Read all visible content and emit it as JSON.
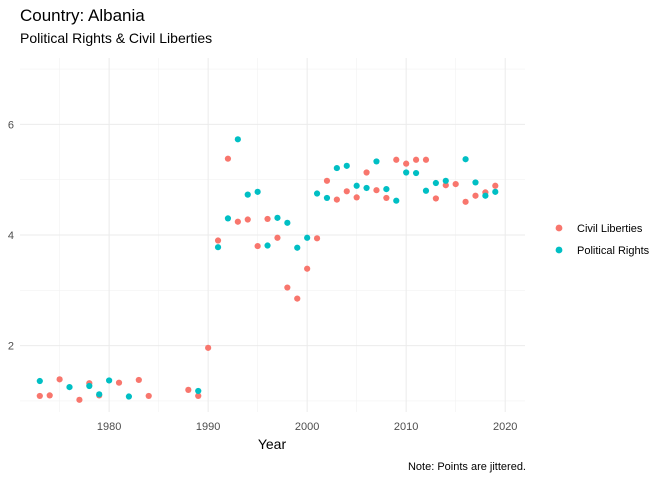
{
  "chart_data": {
    "type": "scatter",
    "title": "Country: Albania",
    "subtitle": "Political Rights & Civil Liberties",
    "xlabel": "Year",
    "ylabel": "",
    "caption": "Note: Points are jittered.",
    "xlim": [
      1971,
      2022
    ],
    "ylim": [
      0.8,
      7.2
    ],
    "xticks": [
      1980,
      1990,
      2000,
      2010,
      2020
    ],
    "yticks": [
      2,
      4,
      6
    ],
    "grid": true,
    "legend_position": "right",
    "series": [
      {
        "name": "Civil Liberties",
        "color": "#F8766D",
        "points": [
          [
            1973,
            1.09
          ],
          [
            1974,
            1.1
          ],
          [
            1975,
            1.39
          ],
          [
            1977,
            1.02
          ],
          [
            1978,
            1.32
          ],
          [
            1979,
            1.1
          ],
          [
            1981,
            1.33
          ],
          [
            1983,
            1.38
          ],
          [
            1984,
            1.09
          ],
          [
            1988,
            1.2
          ],
          [
            1989,
            1.09
          ],
          [
            1990,
            1.96
          ],
          [
            1991,
            3.9
          ],
          [
            1992,
            5.38
          ],
          [
            1993,
            4.24
          ],
          [
            1994,
            4.28
          ],
          [
            1995,
            3.8
          ],
          [
            1996,
            4.29
          ],
          [
            1997,
            3.95
          ],
          [
            1998,
            3.05
          ],
          [
            1999,
            2.85
          ],
          [
            2000,
            3.39
          ],
          [
            2001,
            3.94
          ],
          [
            2002,
            4.98
          ],
          [
            2003,
            4.64
          ],
          [
            2004,
            4.79
          ],
          [
            2005,
            4.68
          ],
          [
            2006,
            5.13
          ],
          [
            2007,
            4.81
          ],
          [
            2008,
            4.67
          ],
          [
            2009,
            5.36
          ],
          [
            2010,
            5.29
          ],
          [
            2011,
            5.36
          ],
          [
            2012,
            5.36
          ],
          [
            2013,
            4.66
          ],
          [
            2014,
            4.9
          ],
          [
            2015,
            4.92
          ],
          [
            2016,
            4.6
          ],
          [
            2017,
            4.71
          ],
          [
            2018,
            4.77
          ],
          [
            2019,
            4.89
          ]
        ]
      },
      {
        "name": "Political Rights",
        "color": "#00BFC4",
        "points": [
          [
            1973,
            1.36
          ],
          [
            1976,
            1.25
          ],
          [
            1978,
            1.27
          ],
          [
            1979,
            1.12
          ],
          [
            1980,
            1.37
          ],
          [
            1982,
            1.08
          ],
          [
            1989,
            1.18
          ],
          [
            1991,
            3.78
          ],
          [
            1992,
            4.3
          ],
          [
            1993,
            5.73
          ],
          [
            1994,
            4.73
          ],
          [
            1995,
            4.78
          ],
          [
            1996,
            3.81
          ],
          [
            1997,
            4.31
          ],
          [
            1998,
            4.22
          ],
          [
            1999,
            3.77
          ],
          [
            2000,
            3.95
          ],
          [
            2001,
            4.75
          ],
          [
            2002,
            4.67
          ],
          [
            2003,
            5.21
          ],
          [
            2004,
            5.25
          ],
          [
            2005,
            4.89
          ],
          [
            2006,
            4.85
          ],
          [
            2007,
            5.33
          ],
          [
            2008,
            4.83
          ],
          [
            2009,
            4.62
          ],
          [
            2010,
            5.13
          ],
          [
            2011,
            5.12
          ],
          [
            2012,
            4.8
          ],
          [
            2013,
            4.94
          ],
          [
            2014,
            4.98
          ],
          [
            2016,
            5.37
          ],
          [
            2017,
            4.95
          ],
          [
            2018,
            4.71
          ],
          [
            2019,
            4.78
          ]
        ]
      }
    ]
  }
}
